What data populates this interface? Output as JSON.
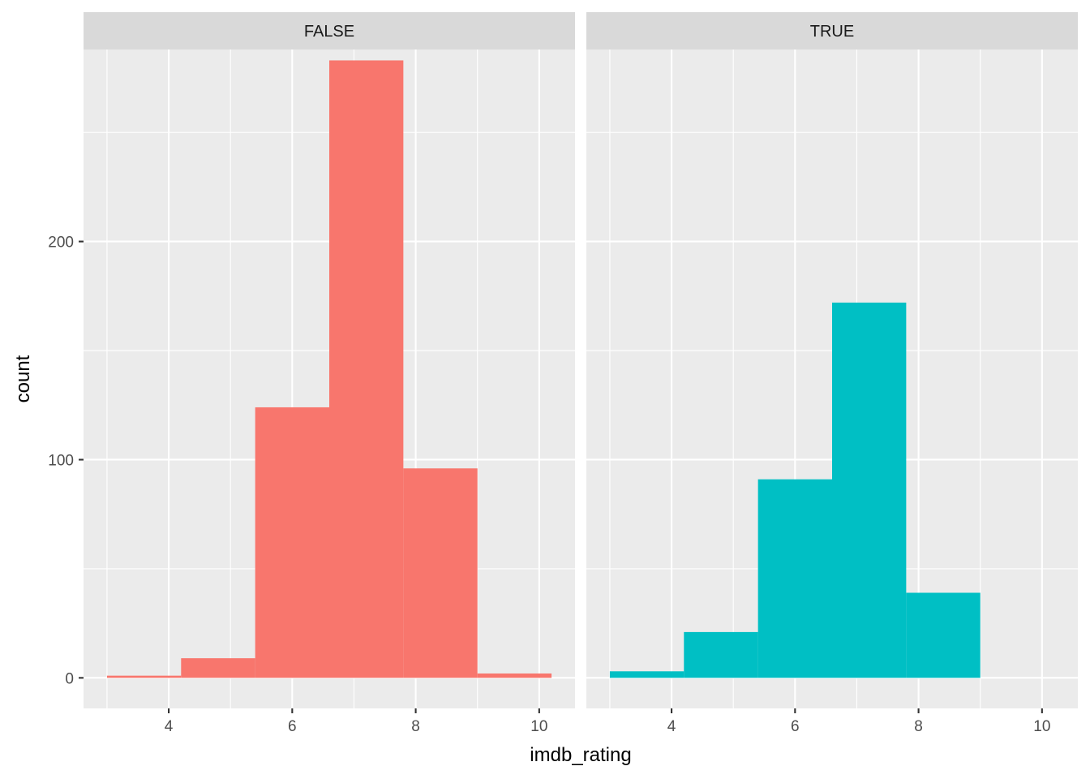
{
  "chart_data": {
    "type": "bar",
    "xlabel": "imdb_rating",
    "ylabel": "count",
    "xlim": [
      2.62,
      10.58
    ],
    "ylim": [
      -14,
      288
    ],
    "x_breaks": [
      4,
      6,
      8,
      10
    ],
    "y_breaks": [
      0,
      100,
      200
    ],
    "bin_edges": [
      3.0,
      4.2,
      5.4,
      6.6,
      7.8,
      9.0,
      10.2
    ],
    "panels": [
      {
        "name": "FALSE",
        "color": "#F8766D",
        "values": [
          1,
          9,
          124,
          283,
          96,
          2
        ]
      },
      {
        "name": "TRUE",
        "color": "#00BFC4",
        "values": [
          3,
          21,
          91,
          172,
          39,
          0
        ]
      }
    ],
    "grid": true,
    "legend": "none"
  }
}
